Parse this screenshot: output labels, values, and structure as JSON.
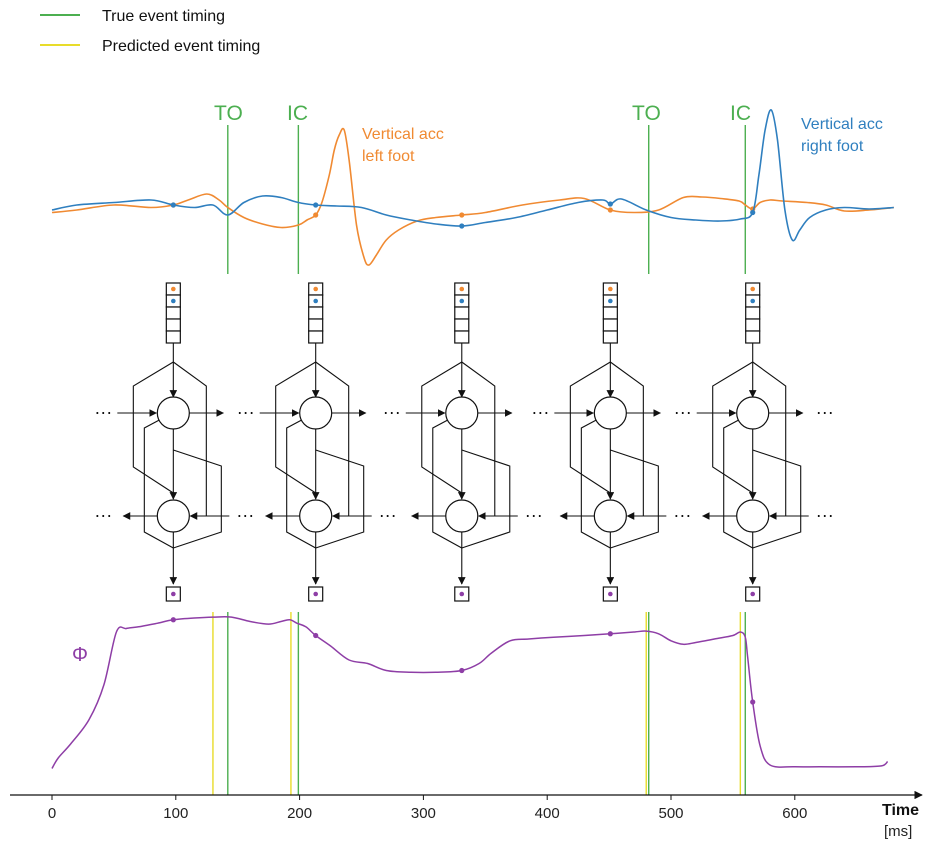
{
  "legend": {
    "true_label": "True event timing",
    "pred_label": "Predicted event timing"
  },
  "colors": {
    "true_event": "#4caf50",
    "predicted_event": "#e8dc2a",
    "left_foot": "#f08a32",
    "right_foot": "#2f7fbf",
    "phase": "#8e3ea6",
    "ink": "#111111"
  },
  "event_labels": [
    "TO",
    "IC",
    "TO",
    "IC"
  ],
  "signals": {
    "left_label_line1": "Vertical acc",
    "left_label_line2": "left foot",
    "right_label_line1": "Vertical acc",
    "right_label_line1b": "Vertical acc",
    "right_label_line2": "right foot"
  },
  "phase_label": "Φ",
  "continuation": "···",
  "axis": {
    "title": "Time",
    "unit": "[ms]",
    "ticks": [
      "0",
      "100",
      "200",
      "300",
      "400",
      "500",
      "600"
    ]
  },
  "chart_data": {
    "type": "line",
    "xlabel": "Time",
    "x_unit": "[ms]",
    "xlim": [
      0,
      700
    ],
    "xticks": [
      0,
      100,
      200,
      300,
      400,
      500,
      600
    ],
    "true_events_ms": [
      142,
      199,
      482,
      560
    ],
    "predicted_events_ms": [
      130,
      193,
      480,
      556
    ],
    "sample_times_ms": [
      98,
      213,
      331,
      451,
      566
    ],
    "phase_series": {
      "name": "Φ",
      "x": [
        0,
        5,
        15,
        30,
        42,
        52,
        60,
        70,
        85,
        98,
        115,
        130,
        145,
        160,
        175,
        185,
        192,
        198,
        205,
        213,
        225,
        240,
        255,
        270,
        290,
        310,
        331,
        345,
        355,
        370,
        385,
        405,
        430,
        451,
        470,
        480,
        490,
        500,
        510,
        520,
        535,
        550,
        556,
        560,
        562,
        566,
        572,
        580,
        600,
        620,
        650,
        670,
        675
      ],
      "y": [
        0.02,
        0.08,
        0.16,
        0.3,
        0.5,
        0.8,
        0.82,
        0.83,
        0.85,
        0.87,
        0.88,
        0.885,
        0.885,
        0.86,
        0.845,
        0.86,
        0.87,
        0.85,
        0.83,
        0.78,
        0.72,
        0.64,
        0.62,
        0.58,
        0.57,
        0.57,
        0.58,
        0.62,
        0.68,
        0.75,
        0.76,
        0.77,
        0.78,
        0.79,
        0.8,
        0.805,
        0.79,
        0.75,
        0.73,
        0.74,
        0.76,
        0.78,
        0.8,
        0.77,
        0.65,
        0.4,
        0.15,
        0.04,
        0.03,
        0.03,
        0.03,
        0.035,
        0.06
      ]
    },
    "signal_series": [
      {
        "name": "Vertical acc left foot",
        "x": [
          0,
          20,
          50,
          80,
          98,
          110,
          125,
          135,
          142,
          155,
          170,
          185,
          199,
          206,
          213,
          218,
          224,
          228,
          232,
          236,
          240,
          246,
          252,
          256,
          262,
          270,
          280,
          295,
          310,
          331,
          350,
          380,
          410,
          430,
          451,
          470,
          490,
          510,
          525,
          540,
          555,
          560,
          566,
          572,
          580,
          590,
          610,
          625,
          640,
          660,
          680
        ],
        "y": [
          0.05,
          0.1,
          0.2,
          0.15,
          0.2,
          0.3,
          0.42,
          0.3,
          0.15,
          -0.05,
          -0.18,
          -0.25,
          -0.2,
          -0.1,
          0.0,
          0.25,
          0.8,
          1.3,
          1.6,
          1.7,
          1.1,
          -0.2,
          -0.85,
          -1.0,
          -0.8,
          -0.5,
          -0.3,
          -0.12,
          -0.05,
          0.0,
          0.05,
          0.2,
          0.3,
          0.33,
          0.1,
          0.05,
          0.1,
          0.35,
          0.36,
          0.33,
          0.28,
          0.2,
          0.12,
          0.25,
          0.3,
          0.28,
          0.25,
          0.2,
          0.08,
          0.1,
          0.15
        ]
      },
      {
        "name": "Vertical acc right foot",
        "x": [
          0,
          20,
          50,
          80,
          98,
          115,
          130,
          142,
          155,
          170,
          185,
          199,
          213,
          230,
          250,
          270,
          290,
          310,
          331,
          350,
          375,
          400,
          425,
          445,
          451,
          460,
          480,
          500,
          520,
          540,
          556,
          566,
          571,
          576,
          581,
          586,
          592,
          598,
          604,
          612,
          625,
          640,
          660,
          680
        ],
        "y": [
          0.1,
          0.2,
          0.25,
          0.3,
          0.2,
          0.15,
          0.2,
          0.0,
          0.25,
          0.38,
          0.35,
          0.25,
          0.2,
          0.18,
          0.15,
          0.0,
          -0.1,
          -0.18,
          -0.22,
          -0.15,
          -0.05,
          0.1,
          0.25,
          0.3,
          0.22,
          0.32,
          0.1,
          -0.05,
          -0.1,
          -0.12,
          -0.08,
          0.05,
          0.8,
          1.7,
          2.1,
          1.5,
          0.1,
          -0.5,
          -0.3,
          -0.05,
          0.1,
          0.15,
          0.12,
          0.15
        ]
      }
    ]
  }
}
